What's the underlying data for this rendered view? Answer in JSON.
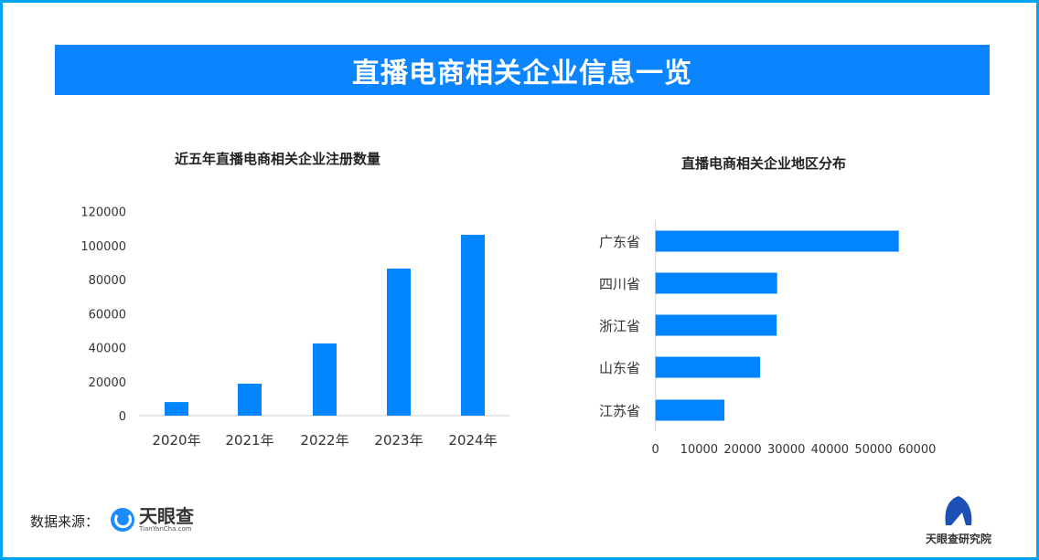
{
  "header": {
    "title": "直播电商相关企业信息一览"
  },
  "colors": {
    "bar": "#0084ff",
    "banner": "#0a84ff",
    "border": "#00a2f2"
  },
  "chart_data": [
    {
      "type": "bar",
      "title": "近五年直播电商相关企业注册数量",
      "categories": [
        "2020年",
        "2021年",
        "2022年",
        "2023年",
        "2024年"
      ],
      "values": [
        8000,
        18800,
        42500,
        86500,
        106400
      ],
      "ylim": [
        0,
        120000
      ],
      "yticks": [
        "0",
        "20000",
        "40000",
        "60000",
        "80000",
        "100000",
        "120000"
      ],
      "grid": false
    },
    {
      "type": "bar",
      "orientation": "horizontal",
      "title": "直播电商相关企业地区分布",
      "categories": [
        "广东省",
        "四川省",
        "浙江省",
        "山东省",
        "江苏省"
      ],
      "values": [
        55800,
        27900,
        27800,
        24000,
        15800
      ],
      "xlim": [
        0,
        60000
      ],
      "xticks": [
        "0",
        "10000",
        "20000",
        "30000",
        "40000",
        "50000",
        "60000"
      ],
      "grid": false
    }
  ],
  "footer": {
    "source_label": "数据来源：",
    "logo1_name": "天眼查",
    "logo1_sub": "TianYanCha.com",
    "logo2_name": "天眼查研究院"
  }
}
